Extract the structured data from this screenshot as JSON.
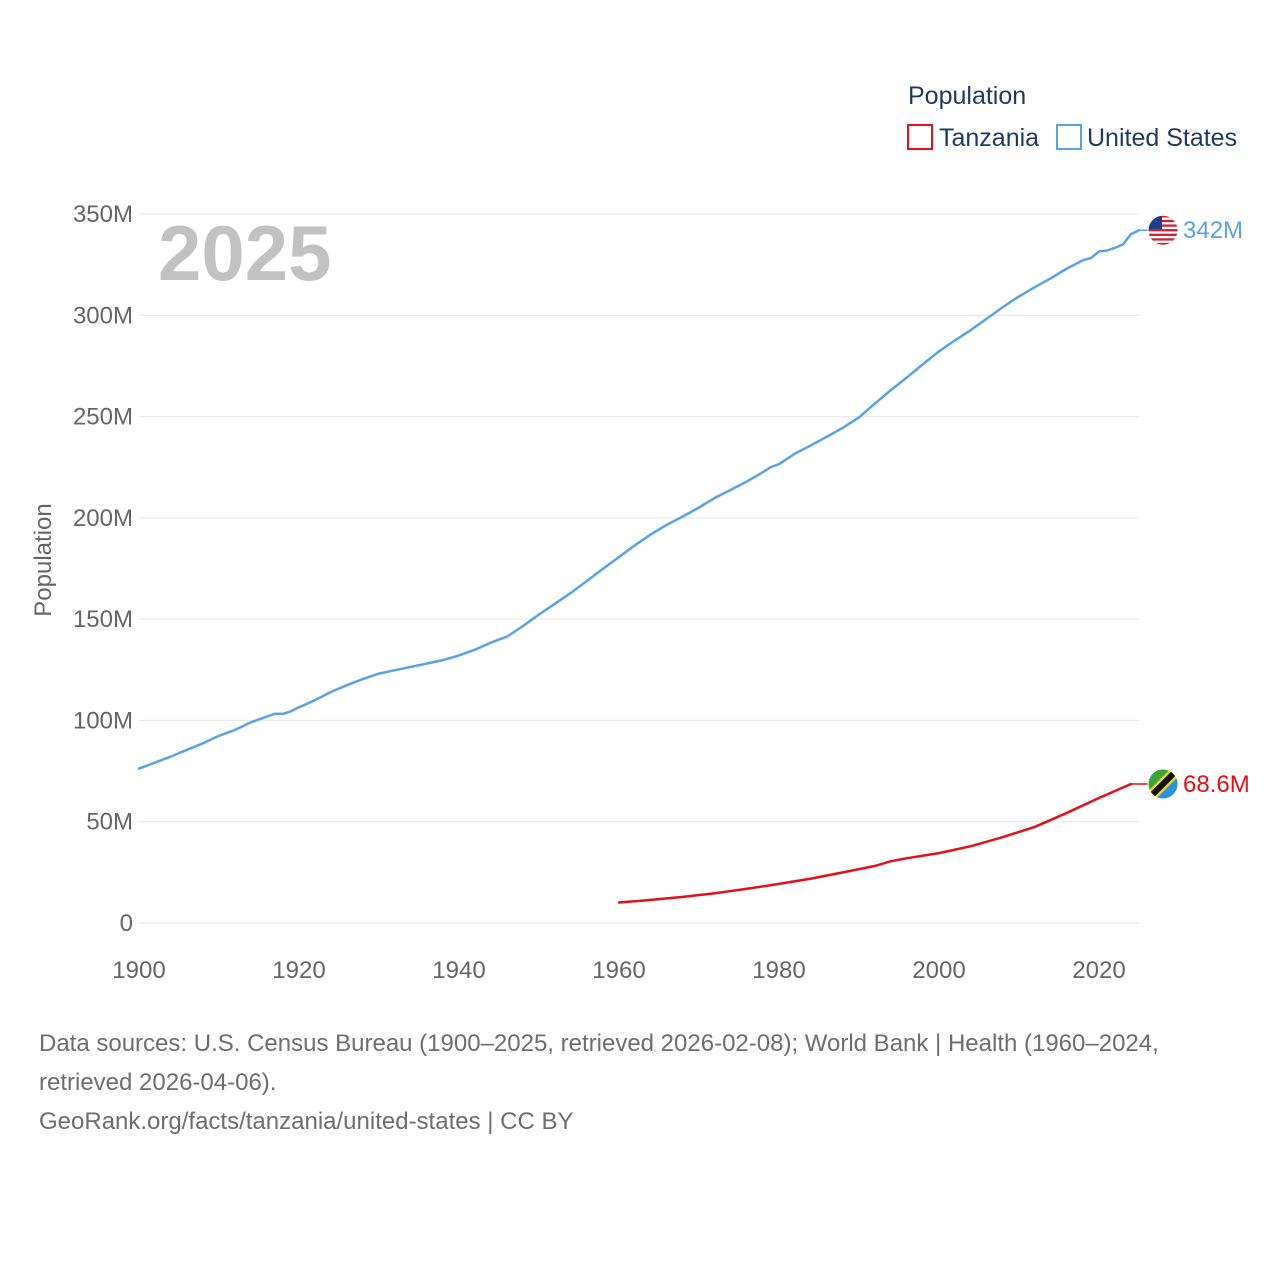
{
  "chart_data": {
    "type": "line",
    "current_year": "2025",
    "ylabel": "Population",
    "xlabel": "",
    "xlim": [
      1900,
      2025
    ],
    "ylim": [
      0,
      350
    ],
    "y_unit": "millions",
    "x_ticks": [
      1900,
      1920,
      1940,
      1960,
      1980,
      2000,
      2020
    ],
    "x_tick_labels": [
      "1900",
      "1920",
      "1940",
      "1960",
      "1980",
      "2000",
      "2020"
    ],
    "y_ticks": [
      0,
      50,
      100,
      150,
      200,
      250,
      300,
      350
    ],
    "y_tick_labels": [
      "0",
      "50M",
      "100M",
      "150M",
      "200M",
      "250M",
      "300M",
      "350M"
    ],
    "grid": true,
    "legend": {
      "title": "Population",
      "placement": "top-right",
      "entries": [
        "Tanzania",
        "United States"
      ]
    },
    "series": [
      {
        "name": "United States",
        "color": "#5aa3e3",
        "end_label": "342M",
        "flag_icon": "us-flag-icon",
        "x": [
          1900,
          1902,
          1904,
          1906,
          1908,
          1910,
          1912,
          1914,
          1916,
          1917,
          1918,
          1919,
          1920,
          1922,
          1924,
          1926,
          1928,
          1930,
          1932,
          1934,
          1936,
          1938,
          1940,
          1942,
          1944,
          1946,
          1948,
          1950,
          1952,
          1954,
          1956,
          1958,
          1960,
          1962,
          1964,
          1966,
          1968,
          1970,
          1972,
          1974,
          1976,
          1978,
          1979,
          1980,
          1982,
          1984,
          1986,
          1988,
          1990,
          1992,
          1994,
          1996,
          1998,
          2000,
          2002,
          2004,
          2006,
          2008,
          2010,
          2012,
          2014,
          2016,
          2018,
          2019,
          2020,
          2021,
          2022,
          2023,
          2024,
          2025
        ],
        "values": [
          76.2,
          79.2,
          82.2,
          85.5,
          88.7,
          92.4,
          95.3,
          99.1,
          101.9,
          103.3,
          103.2,
          104.5,
          106.5,
          110.0,
          114.1,
          117.4,
          120.5,
          123.1,
          124.8,
          126.4,
          128.1,
          129.8,
          132.1,
          134.9,
          138.4,
          141.4,
          146.6,
          152.3,
          157.6,
          163.0,
          168.9,
          174.9,
          180.7,
          186.5,
          191.9,
          196.6,
          200.7,
          205.1,
          209.9,
          213.9,
          218.0,
          222.6,
          225.1,
          226.5,
          231.7,
          235.8,
          240.1,
          244.5,
          249.6,
          256.5,
          263.1,
          269.4,
          275.9,
          282.2,
          287.6,
          292.8,
          298.4,
          304.1,
          309.3,
          313.9,
          318.3,
          323.1,
          327.2,
          328.3,
          331.5,
          332.0,
          333.3,
          335.0,
          340.1,
          342.0
        ]
      },
      {
        "name": "Tanzania",
        "color": "#e3101d",
        "end_label": "68.6M",
        "flag_icon": "tz-flag-icon",
        "x": [
          1960,
          1964,
          1968,
          1972,
          1976,
          1980,
          1984,
          1988,
          1992,
          1994,
          1996,
          2000,
          2004,
          2008,
          2012,
          2016,
          2020,
          2024
        ],
        "values": [
          10.1,
          11.4,
          12.9,
          14.7,
          16.9,
          19.3,
          21.9,
          25.0,
          28.2,
          30.5,
          32.0,
          34.5,
          37.9,
          42.4,
          47.5,
          54.4,
          61.7,
          68.6
        ]
      }
    ]
  },
  "footer": {
    "line1": "Data sources: U.S. Census Bureau (1900–2025, retrieved 2026-02-08); World Bank | Health (1960–2024,",
    "line2": "retrieved 2026-04-06).",
    "line3": "GeoRank.org/facts/tanzania/united-states | CC BY"
  }
}
